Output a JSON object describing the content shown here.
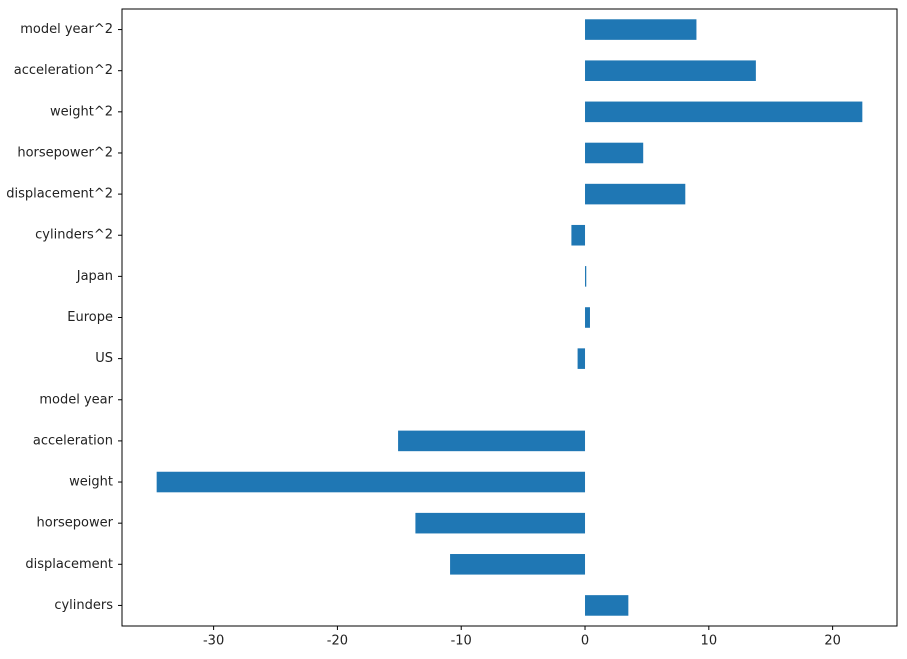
{
  "chart_data": {
    "type": "barh",
    "categories": [
      "cylinders",
      "displacement",
      "horsepower",
      "weight",
      "acceleration",
      "model year",
      "US",
      "Europe",
      "Japan",
      "cylinders^2",
      "displacement^2",
      "horsepower^2",
      "weight^2",
      "acceleration^2",
      "model year^2"
    ],
    "values": [
      3.5,
      -10.9,
      -13.7,
      -34.6,
      -15.1,
      0,
      -0.6,
      0.4,
      0.1,
      -1.1,
      8.1,
      4.7,
      22.4,
      13.8,
      9.0
    ],
    "color": "#1f77b4",
    "xlim": [
      -37.4,
      25.2
    ],
    "xticks": [
      -30,
      -20,
      -10,
      0,
      10,
      20
    ],
    "grid": false
  }
}
